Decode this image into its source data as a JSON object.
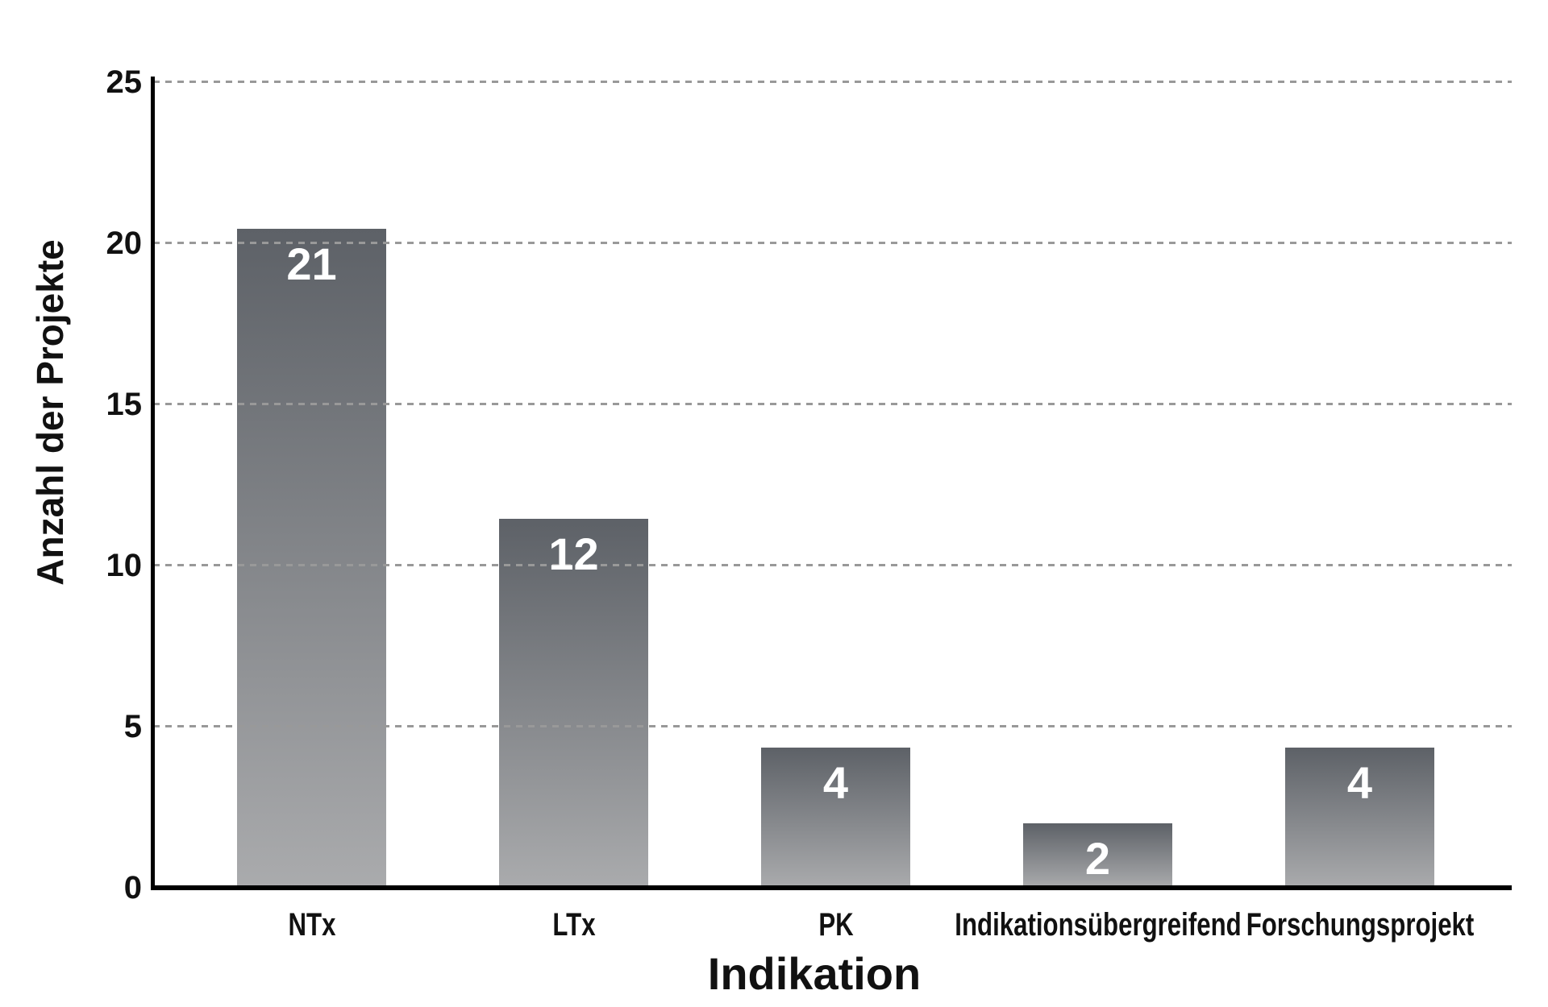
{
  "chart_data": {
    "type": "bar",
    "title": "",
    "xlabel": "Indikation",
    "ylabel": "Anzahl der Projekte",
    "categories": [
      "NTx",
      "LTx",
      "PK",
      "Indikationsübergreifend",
      "Forschungsprojekt"
    ],
    "values": [
      21,
      12,
      4,
      2,
      4
    ],
    "value_labels": [
      "21",
      "12",
      "4",
      "2",
      "4"
    ],
    "drawn_bar_heights": [
      20.45,
      11.45,
      4.35,
      2.0,
      4.35
    ],
    "yticks": [
      0,
      5,
      10,
      15,
      20,
      25
    ],
    "ytick_labels": [
      "0",
      "5",
      "10",
      "15",
      "20",
      "25"
    ],
    "ylim": [
      0,
      25
    ],
    "grid": "horizontal dashed gridlines at 5, 10, 15, 20, 25",
    "legend": "none",
    "colors": {
      "bar_gradient_top": "#5d6167",
      "bar_gradient_bottom": "#aaabad",
      "value_label": "#ffffff",
      "gridline": "#999999",
      "axis_line": "#000000",
      "text": "#111111",
      "background": "#ffffff"
    }
  }
}
